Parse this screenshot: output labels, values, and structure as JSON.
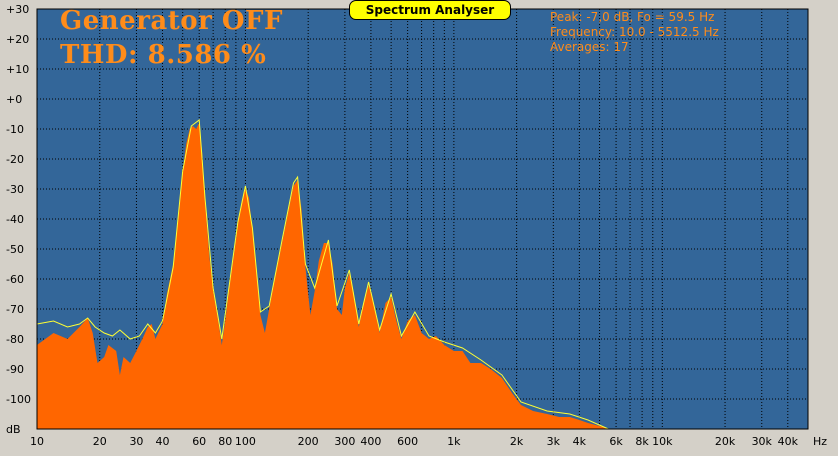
{
  "window_title": "Spectrum Analyser",
  "status": {
    "generator": "Generator OFF",
    "thd": "THD: 8.586 %"
  },
  "info": {
    "peak": "Peak: -7,0 dB, Fo = 59.5 Hz",
    "frequency": "Frequency: 10.0 - 5512.5 Hz",
    "averages": "Averages: 17"
  },
  "colors": {
    "plot_background": "#336699",
    "fill": "#ff6600",
    "trace": "#ffff33",
    "grid": "#000000",
    "text_accent": "#ff8c1a"
  },
  "chart_data": {
    "type": "area",
    "x_scale": "log",
    "xlim": [
      10,
      50000
    ],
    "ylim": [
      -110,
      30
    ],
    "xlabel": "",
    "x_unit": "Hz",
    "y_unit": "dB",
    "grid": true,
    "y_ticks": [
      "+30",
      "+20",
      "+10",
      "+0",
      "-10",
      "-20",
      "-30",
      "-40",
      "-50",
      "-60",
      "-70",
      "-80",
      "-90",
      "-100",
      "dB"
    ],
    "x_ticks": [
      {
        "label": "10",
        "value": 10
      },
      {
        "label": "20",
        "value": 20
      },
      {
        "label": "30",
        "value": 30
      },
      {
        "label": "40",
        "value": 40
      },
      {
        "label": "60",
        "value": 60
      },
      {
        "label": "80",
        "value": 80
      },
      {
        "label": "100",
        "value": 100
      },
      {
        "label": "200",
        "value": 200
      },
      {
        "label": "300",
        "value": 300
      },
      {
        "label": "400",
        "value": 400
      },
      {
        "label": "600",
        "value": 600
      },
      {
        "label": "1k",
        "value": 1000
      },
      {
        "label": "2k",
        "value": 2000
      },
      {
        "label": "3k",
        "value": 3000
      },
      {
        "label": "4k",
        "value": 4000
      },
      {
        "label": "6k",
        "value": 6000
      },
      {
        "label": "8k",
        "value": 8000
      },
      {
        "label": "10k",
        "value": 10000
      },
      {
        "label": "20k",
        "value": 20000
      },
      {
        "label": "30k",
        "value": 30000
      },
      {
        "label": "40k",
        "value": 40000
      }
    ],
    "series": [
      {
        "style": "filled spectrum",
        "points": [
          [
            10,
            -82
          ],
          [
            12,
            -78
          ],
          [
            14,
            -80
          ],
          [
            16,
            -76
          ],
          [
            17.5,
            -73
          ],
          [
            18.5,
            -78
          ],
          [
            19.5,
            -88
          ],
          [
            21,
            -86
          ],
          [
            22,
            -82
          ],
          [
            24,
            -84
          ],
          [
            25,
            -92
          ],
          [
            26,
            -86
          ],
          [
            28,
            -88
          ],
          [
            30,
            -84
          ],
          [
            32,
            -80
          ],
          [
            34,
            -76
          ],
          [
            35.5,
            -75
          ],
          [
            37,
            -80
          ],
          [
            40,
            -75
          ],
          [
            42,
            -65
          ],
          [
            45,
            -55
          ],
          [
            48,
            -38
          ],
          [
            50,
            -24
          ],
          [
            52,
            -15
          ],
          [
            54,
            -10
          ],
          [
            56,
            -9
          ],
          [
            58,
            -10
          ],
          [
            60,
            -8
          ],
          [
            62,
            -18
          ],
          [
            64,
            -34
          ],
          [
            67,
            -52
          ],
          [
            70,
            -64
          ],
          [
            74,
            -74
          ],
          [
            77,
            -82
          ],
          [
            80,
            -74
          ],
          [
            84,
            -62
          ],
          [
            88,
            -52
          ],
          [
            92,
            -42
          ],
          [
            96,
            -34
          ],
          [
            100,
            -30
          ],
          [
            104,
            -33
          ],
          [
            108,
            -44
          ],
          [
            113,
            -58
          ],
          [
            118,
            -72
          ],
          [
            124,
            -78
          ],
          [
            130,
            -70
          ],
          [
            140,
            -58
          ],
          [
            150,
            -48
          ],
          [
            160,
            -38
          ],
          [
            170,
            -29
          ],
          [
            178,
            -27
          ],
          [
            186,
            -37
          ],
          [
            194,
            -56
          ],
          [
            205,
            -72
          ],
          [
            215,
            -64
          ],
          [
            225,
            -54
          ],
          [
            238,
            -48
          ],
          [
            250,
            -48
          ],
          [
            262,
            -55
          ],
          [
            275,
            -70
          ],
          [
            290,
            -72
          ],
          [
            300,
            -63
          ],
          [
            315,
            -58
          ],
          [
            330,
            -64
          ],
          [
            350,
            -76
          ],
          [
            370,
            -68
          ],
          [
            390,
            -62
          ],
          [
            410,
            -68
          ],
          [
            440,
            -78
          ],
          [
            470,
            -68
          ],
          [
            500,
            -66
          ],
          [
            530,
            -74
          ],
          [
            560,
            -80
          ],
          [
            600,
            -74
          ],
          [
            650,
            -72
          ],
          [
            700,
            -78
          ],
          [
            760,
            -80
          ],
          [
            820,
            -79
          ],
          [
            900,
            -82
          ],
          [
            1000,
            -84
          ],
          [
            1100,
            -84
          ],
          [
            1200,
            -88
          ],
          [
            1350,
            -88
          ],
          [
            1500,
            -90
          ],
          [
            1700,
            -93
          ],
          [
            1900,
            -98
          ],
          [
            2100,
            -102
          ],
          [
            2400,
            -104
          ],
          [
            2800,
            -105
          ],
          [
            3200,
            -106
          ],
          [
            3600,
            -106
          ],
          [
            4000,
            -107
          ],
          [
            4400,
            -108
          ],
          [
            5000,
            -109
          ],
          [
            5512.5,
            -110
          ]
        ]
      },
      {
        "style": "averaged trace",
        "points": [
          [
            10,
            -75
          ],
          [
            12,
            -74
          ],
          [
            14,
            -76
          ],
          [
            16,
            -75
          ],
          [
            17.5,
            -73
          ],
          [
            19,
            -76
          ],
          [
            21,
            -78
          ],
          [
            23,
            -79
          ],
          [
            25,
            -77
          ],
          [
            28,
            -80
          ],
          [
            31,
            -79
          ],
          [
            34,
            -75
          ],
          [
            37,
            -78
          ],
          [
            40,
            -74
          ],
          [
            45,
            -56
          ],
          [
            50,
            -24
          ],
          [
            55,
            -9
          ],
          [
            60,
            -7
          ],
          [
            64,
            -33
          ],
          [
            70,
            -63
          ],
          [
            77,
            -80
          ],
          [
            84,
            -61
          ],
          [
            92,
            -41
          ],
          [
            100,
            -29
          ],
          [
            108,
            -43
          ],
          [
            118,
            -71
          ],
          [
            130,
            -69
          ],
          [
            150,
            -47
          ],
          [
            170,
            -28
          ],
          [
            178,
            -26
          ],
          [
            194,
            -55
          ],
          [
            215,
            -63
          ],
          [
            250,
            -47
          ],
          [
            275,
            -69
          ],
          [
            315,
            -57
          ],
          [
            350,
            -75
          ],
          [
            390,
            -61
          ],
          [
            440,
            -77
          ],
          [
            500,
            -65
          ],
          [
            560,
            -79
          ],
          [
            650,
            -71
          ],
          [
            760,
            -79
          ],
          [
            900,
            -81
          ],
          [
            1100,
            -83
          ],
          [
            1350,
            -87
          ],
          [
            1700,
            -92
          ],
          [
            2100,
            -101
          ],
          [
            2800,
            -104
          ],
          [
            3600,
            -105
          ],
          [
            4400,
            -107
          ],
          [
            5512.5,
            -110
          ]
        ]
      }
    ]
  }
}
